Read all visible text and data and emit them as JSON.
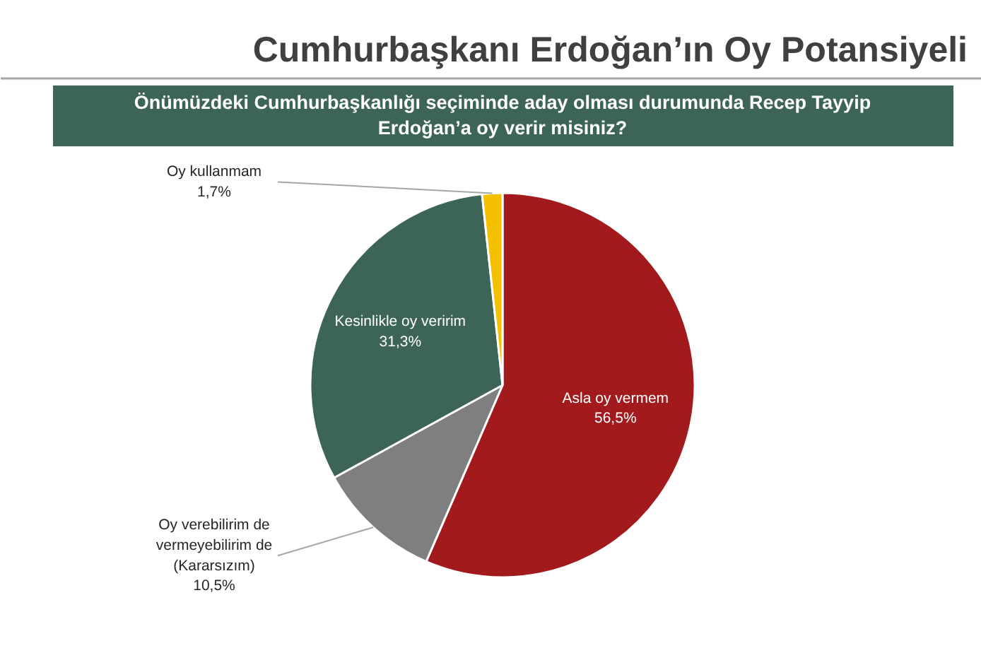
{
  "chart_data": {
    "type": "pie",
    "title": "Cumhurbaşkanı Erdoğan’ın Oy Potansiyeli",
    "subtitle": "Önümüzdeki Cumhurbaşkanlığı seçiminde aday olması durumunda Recep Tayyip\nErdoğan’a oy verir misiniz?",
    "categories": [
      "Asla oy vermem",
      "Oy verebilirim de\nvermeyebilirim de\n(Kararsızım)",
      "Kesinlikle oy veririm",
      "Oy kullanmam"
    ],
    "values": [
      56.5,
      10.5,
      31.3,
      1.7
    ],
    "colors": [
      "#a31a1c",
      "#7f7f7f",
      "#3d6459",
      "#f5c000"
    ],
    "value_labels": [
      "56,5%",
      "10,5%",
      "31,3%",
      "1,7%"
    ]
  }
}
